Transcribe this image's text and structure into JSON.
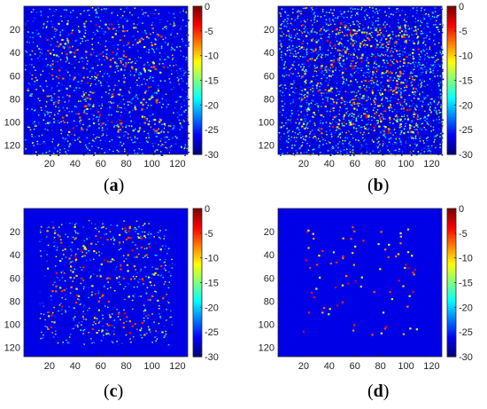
{
  "chart_data": [
    {
      "type": "heatmap",
      "caption": "a",
      "x_ticks": [
        20,
        40,
        60,
        80,
        100,
        120
      ],
      "y_ticks": [
        20,
        40,
        60,
        80,
        100,
        120
      ],
      "xlim": [
        1,
        128
      ],
      "ylim": [
        1,
        128
      ],
      "colorbar": {
        "ticks": [
          0,
          -5,
          -10,
          -15,
          -20,
          -25,
          -30
        ],
        "range": [
          -30,
          0
        ],
        "colormap": "jet"
      },
      "background_level": -27,
      "noise_density": 0.13,
      "bright_points": 150,
      "noise_full_image": true
    },
    {
      "type": "heatmap",
      "caption": "b",
      "x_ticks": [
        20,
        40,
        60,
        80,
        100,
        120
      ],
      "y_ticks": [
        20,
        40,
        60,
        80,
        100,
        120
      ],
      "xlim": [
        1,
        128
      ],
      "ylim": [
        1,
        128
      ],
      "colorbar": {
        "ticks": [
          0,
          -5,
          -10,
          -15,
          -20,
          -25,
          -30
        ],
        "range": [
          -30,
          0
        ],
        "colormap": "jet"
      },
      "background_level": -27,
      "noise_density": 0.24,
      "bright_points": 230,
      "noise_full_image": true
    },
    {
      "type": "heatmap",
      "caption": "c",
      "x_ticks": [
        20,
        40,
        60,
        80,
        100,
        120
      ],
      "y_ticks": [
        20,
        40,
        60,
        80,
        100,
        120
      ],
      "xlim": [
        1,
        128
      ],
      "ylim": [
        1,
        128
      ],
      "colorbar": {
        "ticks": [
          0,
          -5,
          -10,
          -15,
          -20,
          -25,
          -30
        ],
        "range": [
          -30,
          0
        ],
        "colormap": "jet"
      },
      "background_level": -27,
      "noise_density": 0.06,
      "bright_points": 130,
      "noise_full_image": false
    },
    {
      "type": "heatmap",
      "caption": "d",
      "x_ticks": [
        20,
        40,
        60,
        80,
        100,
        120
      ],
      "y_ticks": [
        20,
        40,
        60,
        80,
        100,
        120
      ],
      "xlim": [
        1,
        128
      ],
      "ylim": [
        1,
        128
      ],
      "colorbar": {
        "ticks": [
          0,
          -5,
          -10,
          -15,
          -20,
          -25,
          -30
        ],
        "range": [
          -30,
          0
        ],
        "colormap": "jet"
      },
      "background_level": -27,
      "noise_density": 0.0,
      "bright_points": 80,
      "noise_full_image": false
    }
  ]
}
